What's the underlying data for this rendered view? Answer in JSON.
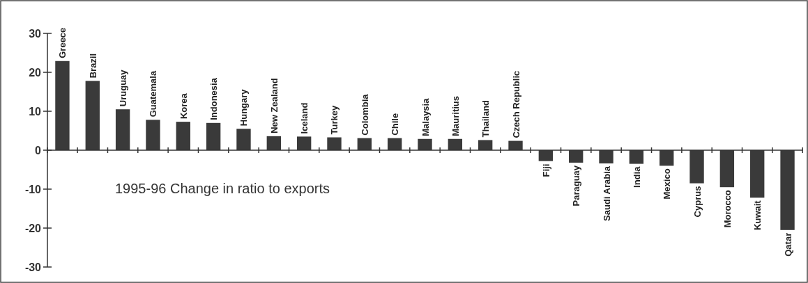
{
  "chart_data": {
    "type": "bar",
    "title": "1995-96 Change in ratio to exports",
    "categories": [
      "Greece",
      "Brazil",
      "Uruguay",
      "Guatemala",
      "Korea",
      "Indonesia",
      "Hungary",
      "New Zealand",
      "Iceland",
      "Turkey",
      "Colombia",
      "Chile",
      "Malaysia",
      "Mauritius",
      "Thailand",
      "Czech Republic",
      "Fiji",
      "Paraguay",
      "Saudi Arabia",
      "India",
      "Mexico",
      "Cyprus",
      "Morocco",
      "Kuwait",
      "Qatar"
    ],
    "values": [
      22.9,
      17.8,
      10.5,
      7.8,
      7.3,
      7.0,
      5.5,
      3.6,
      3.5,
      3.3,
      3.1,
      3.1,
      2.9,
      2.9,
      2.6,
      2.4,
      -2.8,
      -3.2,
      -3.4,
      -3.5,
      -4.0,
      -8.5,
      -9.5,
      -12.2,
      -20.5
    ],
    "color": "#3a3a3a",
    "ylim": [
      -30,
      30
    ],
    "yticks": [
      -30,
      -20,
      -10,
      0,
      10,
      20,
      30
    ],
    "grid": false
  }
}
